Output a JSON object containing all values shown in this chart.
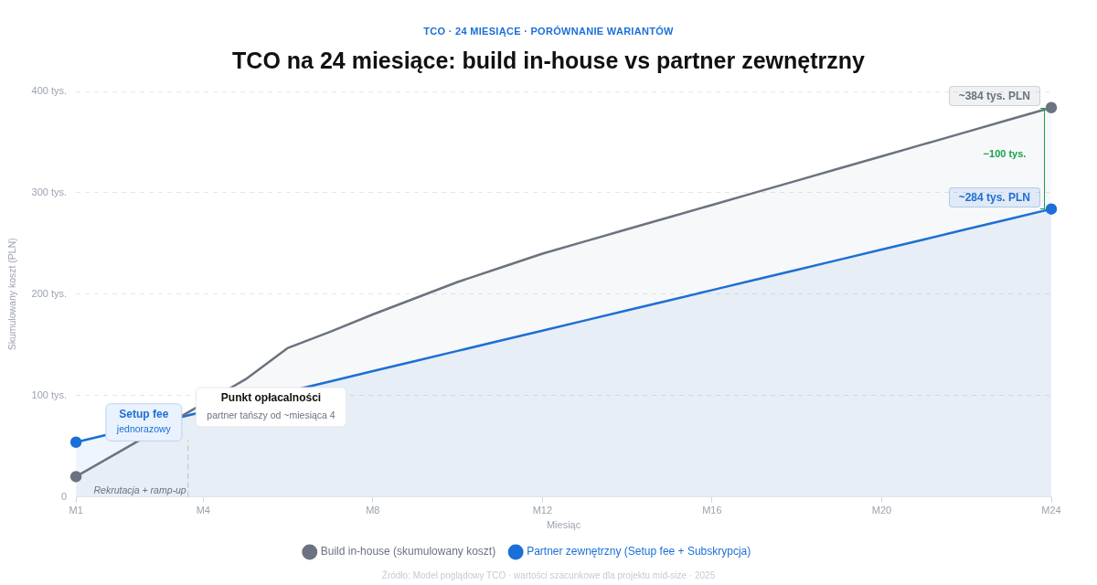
{
  "chart_data": {
    "type": "area",
    "subtitle": "TCO · 24 MIESIĄCE · PORÓWNANIE WARIANTÓW",
    "title": "TCO na 24 miesiące: build in-house vs partner zewnętrzny",
    "xlabel": "Miesiąc",
    "ylabel": "Skumulowany koszt (PLN)",
    "series": [
      {
        "name": "Build in-house (skumulowany koszt)",
        "color": "#6b7280",
        "values": [
          20,
          44,
          null,
          null,
          116,
          147,
          163,
          180,
          196,
          212,
          226,
          240,
          252,
          264,
          276,
          288,
          300,
          312,
          324,
          336,
          348,
          360,
          372,
          384
        ],
        "value_labels": [
          null,
          null,
          null,
          null,
          null,
          null,
          null,
          null,
          null,
          null,
          null,
          null,
          null,
          null,
          null,
          null,
          null,
          null,
          null,
          null,
          null,
          null,
          null,
          "~384 tys. PLN"
        ]
      },
      {
        "name": "Partner zewnętrzny (Setup fee + Subskrypcja)",
        "color": "#1a6fd8",
        "values": [
          54,
          null,
          null,
          null,
          null,
          null,
          114,
          124,
          134,
          144,
          154,
          164,
          174,
          184,
          194,
          204,
          214,
          224,
          234,
          244,
          254,
          264,
          274,
          284
        ],
        "value_labels": [
          null,
          null,
          null,
          null,
          null,
          null,
          null,
          null,
          null,
          null,
          null,
          null,
          null,
          null,
          null,
          null,
          null,
          null,
          null,
          null,
          null,
          null,
          null,
          "~284 tys. PLN"
        ]
      }
    ],
    "categories": [
      "M1",
      null,
      null,
      "M4",
      null,
      null,
      null,
      "M8",
      null,
      null,
      null,
      "M12",
      null,
      null,
      null,
      "M16",
      null,
      null,
      null,
      "M20",
      null,
      null,
      null,
      "M24"
    ],
    "ylim": [
      0,
      400
    ],
    "yticks": [
      0,
      {
        "value": 100,
        "label": "100 tys."
      },
      {
        "value": 200,
        "label": "200 tys."
      },
      {
        "value": 300,
        "label": "300 tys."
      },
      {
        "value": 400,
        "label": "400 tys."
      }
    ],
    "annotations": [
      "Setup fee",
      "jednorazowy",
      "Punkt opłacalności",
      "partner tańszy od ~miesiąca 4",
      "−100 tys.",
      "Rekrutacja + ramp-up",
      "Źródło: Model poglądowy TCO · wartości szacunkowe dla projektu mid-size · 2025"
    ],
    "grid": "y",
    "legend": "bottom",
    "line_style": "solid"
  }
}
